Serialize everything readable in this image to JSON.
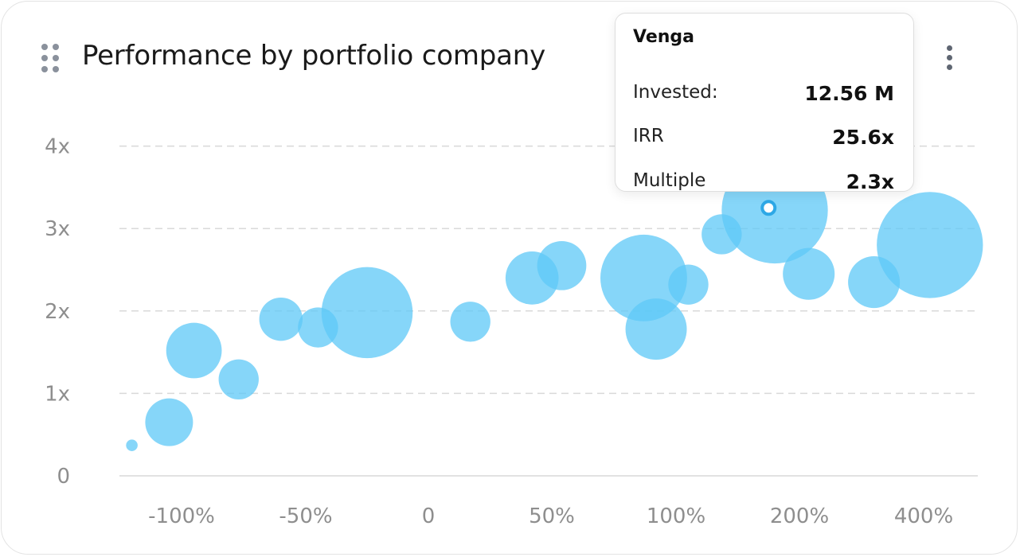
{
  "header": {
    "title": "Performance by portfolio company"
  },
  "icons": {
    "drag": "drag-handle-icon",
    "menu": "more-vertical-icon"
  },
  "colors": {
    "bubble": "#5ec8f7",
    "bubble_opacity": 0.75,
    "grid": "#d9d9d9",
    "axis_text": "#8e8e8e"
  },
  "chart_data": {
    "type": "scatter",
    "title": "Performance by portfolio company",
    "x_ticks": [
      "-100%",
      "-50%",
      "0",
      "50%",
      "100%",
      "200%",
      "400%"
    ],
    "y_ticks": [
      "0",
      "1x",
      "2x",
      "3x",
      "4x"
    ],
    "ylim": [
      0,
      4
    ],
    "y_grid": "dashed",
    "points": [
      {
        "x": -120,
        "y": 0.37,
        "size": 0.1
      },
      {
        "x": -105,
        "y": 0.65,
        "size": 1.7
      },
      {
        "x": -95,
        "y": 1.52,
        "size": 2.3
      },
      {
        "x": -77,
        "y": 1.17,
        "size": 1.2
      },
      {
        "x": -60,
        "y": 1.9,
        "size": 1.4
      },
      {
        "x": -45,
        "y": 1.8,
        "size": 1.2
      },
      {
        "x": -25,
        "y": 1.98,
        "size": 6.2
      },
      {
        "x": 17,
        "y": 1.87,
        "size": 1.2
      },
      {
        "x": 42,
        "y": 2.4,
        "size": 2.1
      },
      {
        "x": 54,
        "y": 2.55,
        "size": 1.8
      },
      {
        "x": 87,
        "y": 2.4,
        "size": 5.6
      },
      {
        "x": 92,
        "y": 1.78,
        "size": 2.8
      },
      {
        "x": 110,
        "y": 2.32,
        "size": 1.2
      },
      {
        "x": 137,
        "y": 2.93,
        "size": 1.2
      },
      {
        "x": 180,
        "y": 3.22,
        "size": 8.4
      },
      {
        "x": 215,
        "y": 2.45,
        "size": 2.0
      },
      {
        "x": 320,
        "y": 2.35,
        "size": 2.0
      },
      {
        "x": 410,
        "y": 2.8,
        "size": 8.4
      }
    ],
    "highlight": {
      "name": "Venga",
      "rows": [
        {
          "label": "Invested:",
          "value": "12.56 M"
        },
        {
          "label": "IRR",
          "value": "25.6x"
        },
        {
          "label": "Multiple",
          "value": "2.3x"
        }
      ],
      "x": 175,
      "y": 3.25
    }
  }
}
